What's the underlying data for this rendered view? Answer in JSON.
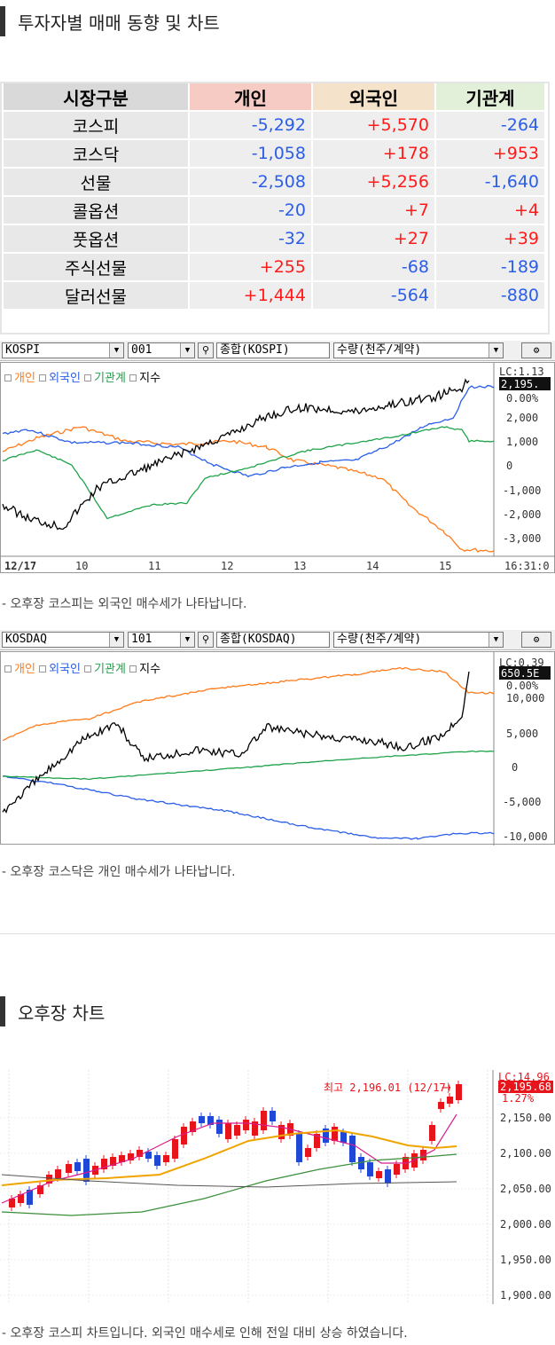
{
  "section1_title": "투자자별 매매 동향 및 차트",
  "section2_title": "오후장 차트",
  "table": {
    "headers": [
      "시장구분",
      "개인",
      "외국인",
      "기관계"
    ],
    "rows": [
      {
        "label": "코스피",
        "v": [
          "-5,292",
          "+5,570",
          "-264"
        ]
      },
      {
        "label": "코스닥",
        "v": [
          "-1,058",
          "+178",
          "+953"
        ]
      },
      {
        "label": "선물",
        "v": [
          "-2,508",
          "+5,256",
          "-1,640"
        ]
      },
      {
        "label": "콜옵션",
        "v": [
          "-20",
          "+7",
          "+4"
        ]
      },
      {
        "label": "풋옵션",
        "v": [
          "-32",
          "+27",
          "+39"
        ]
      },
      {
        "label": "주식선물",
        "v": [
          "+255",
          "-68",
          "-189"
        ]
      },
      {
        "label": "달러선물",
        "v": [
          "+1,444",
          "-564",
          "-880"
        ]
      }
    ]
  },
  "kospi_toolbar": {
    "market": "KOSPI",
    "code": "001",
    "name": "종합(KOSPI)",
    "unit": "수량(천주/계약)"
  },
  "kosdaq_toolbar": {
    "market": "KOSDAQ",
    "code": "101",
    "name": "종합(KOSDAQ)",
    "unit": "수량(천주/계약)"
  },
  "legend": {
    "individual": "개인",
    "foreign": "외국인",
    "institution": "기관계",
    "index": "지수"
  },
  "kospi_chart": {
    "top_label": "LC:1.13",
    "price_tag": "2,195.",
    "pct": "0.00%",
    "yticks": [
      "2,000",
      "1,000",
      "0",
      "-1,000",
      "-2,000",
      "-3,000"
    ],
    "xticks": [
      "12/17",
      "10",
      "11",
      "12",
      "13",
      "14",
      "15",
      "16:31:0"
    ]
  },
  "kosdaq_chart": {
    "top_label": "LC:0.39",
    "price_tag": "650.5E",
    "pct": "0.00%",
    "yticks": [
      "10,000",
      "5,000",
      "0",
      "-5,000",
      "-10,000"
    ]
  },
  "captions": {
    "kospi": "- 오후장 코스피는 외국인 매수세가 나타납니다.",
    "kosdaq": "- 오후장 코스닥은 개인 매수세가 나타납니다.",
    "candle": "- 오후장 코스피 차트입니다. 외국인 매수세로 인해 전일 대비 상승 하였습니다."
  },
  "candle_chart": {
    "top_label": "LC:14.96",
    "price_tag": "2,195.68",
    "pct": "1.27%",
    "high_note": "최고 2,196.01 (12/17)",
    "yticks": [
      "2,150.00",
      "2,100.00",
      "2,050.00",
      "2,000.00",
      "1,950.00",
      "1,900.00"
    ]
  },
  "colors": {
    "individual": "#ff7a1a",
    "foreign": "#2a5ee8",
    "institution": "#1ea34a",
    "index": "#000000",
    "up": "#e8141b",
    "down": "#1f48d6"
  }
}
